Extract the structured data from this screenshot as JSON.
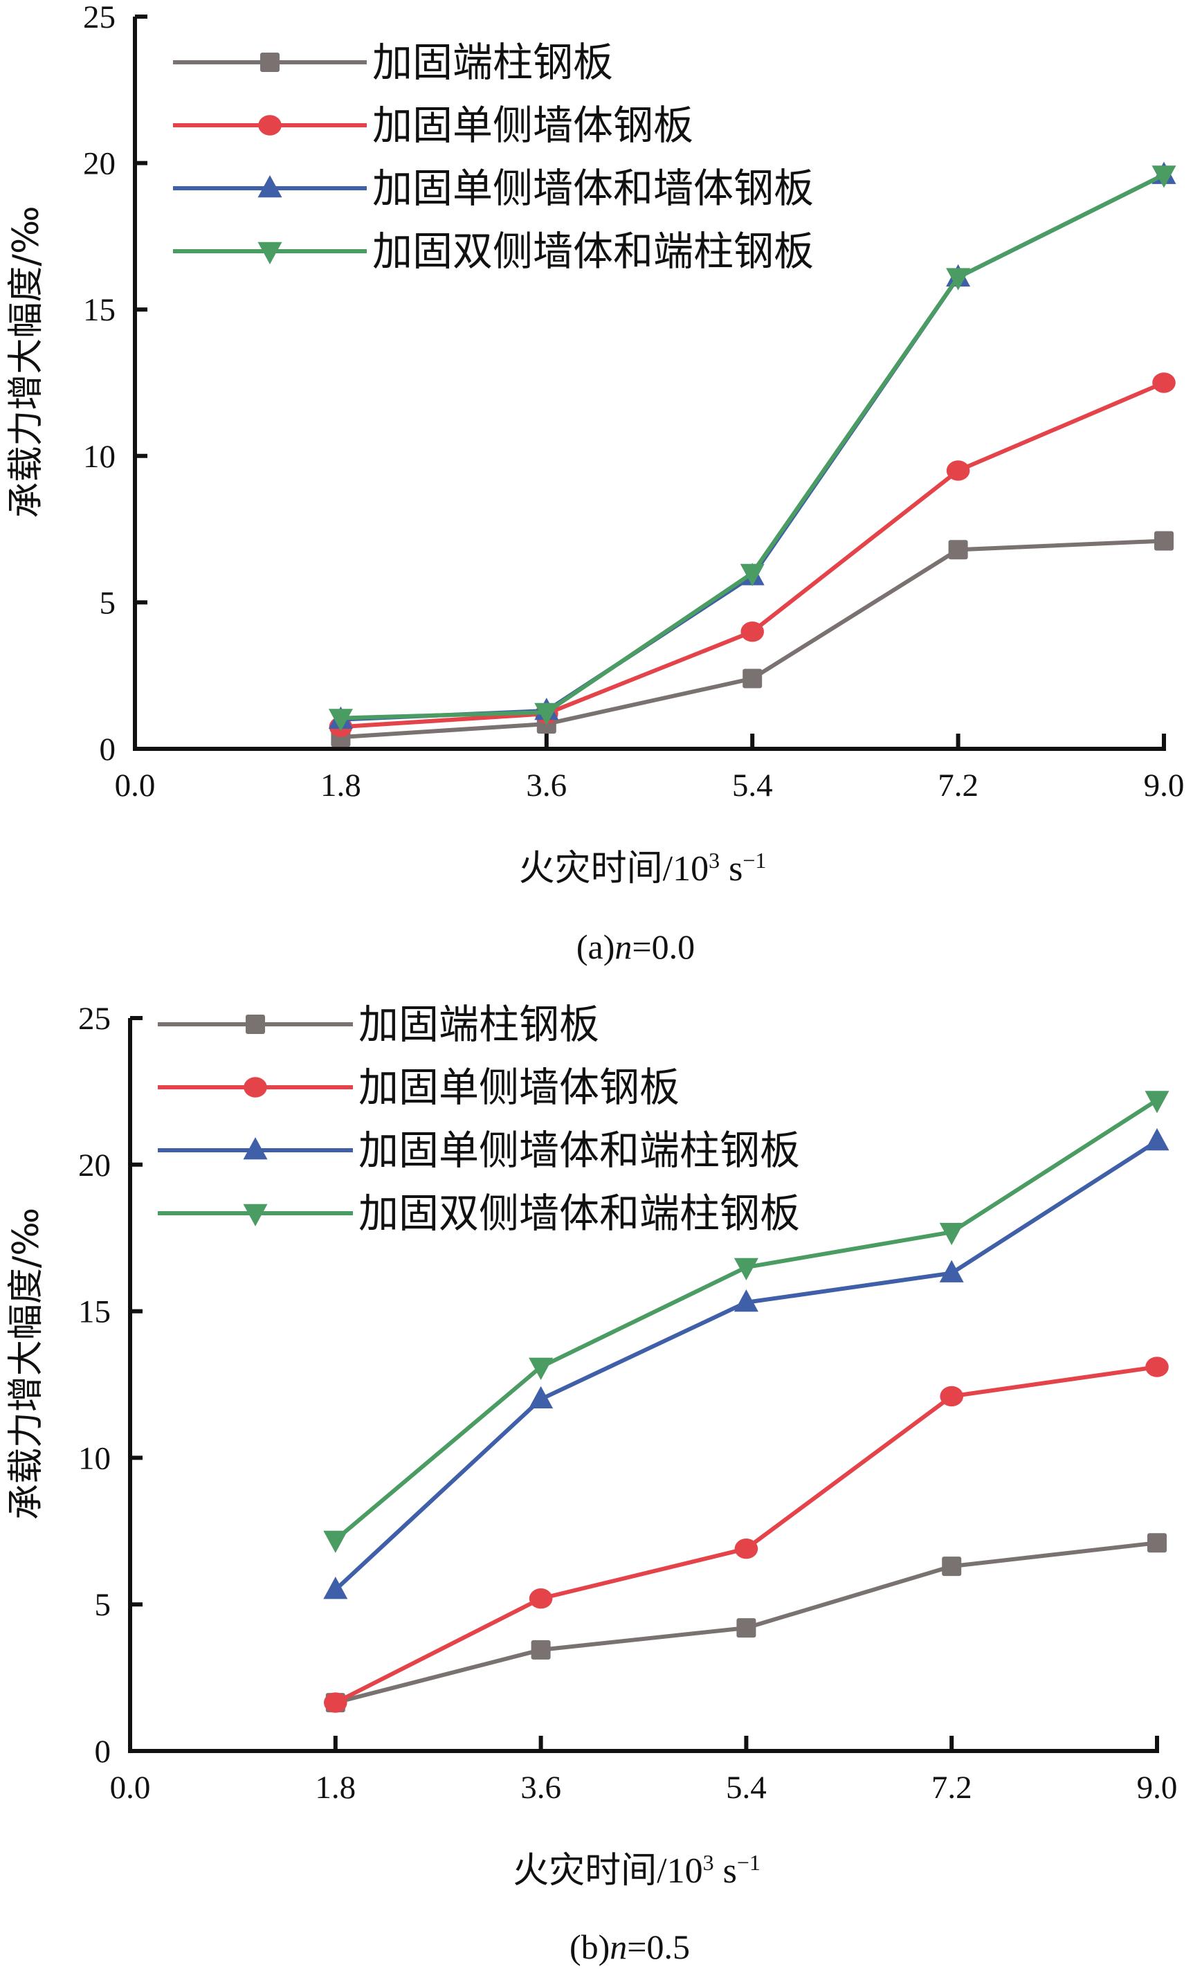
{
  "chart_data": [
    {
      "type": "line",
      "caption": "(a)n=0.0",
      "caption_prefix": "(a)",
      "caption_var": "n",
      "caption_value": "=0.0",
      "xlabel_cn": "火灾时间",
      "xlabel_unit": "/10",
      "xlabel_sup1": "3",
      "xlabel_s": " s",
      "xlabel_sup2": "−1",
      "ylabel": "承载力增大幅度/‰",
      "xlim": [
        0,
        9.0
      ],
      "ylim": [
        0,
        25
      ],
      "x_ticks": [
        "0.0",
        "1.8",
        "3.6",
        "5.4",
        "7.2",
        "9.0"
      ],
      "y_ticks": [
        "0",
        "5",
        "10",
        "15",
        "20",
        "25"
      ],
      "legend_position": "top-left",
      "x": [
        1.8,
        3.6,
        5.4,
        7.2,
        9.0
      ],
      "series": [
        {
          "name": "加固端柱钢板",
          "marker": "square",
          "color": "#7a7270",
          "values": [
            0.4,
            0.85,
            2.4,
            6.8,
            7.1
          ]
        },
        {
          "name": "加固单侧墙体钢板",
          "marker": "circle",
          "color": "#e5434a",
          "values": [
            0.75,
            1.2,
            4.0,
            9.5,
            12.5
          ]
        },
        {
          "name": "加固单侧墙体和墙体钢板",
          "marker": "triangle-up",
          "color": "#3f5fa8",
          "values": [
            1.0,
            1.3,
            5.9,
            16.1,
            19.6
          ]
        },
        {
          "name": "加固双侧墙体和端柱钢板",
          "marker": "triangle-down",
          "color": "#4a9c62",
          "values": [
            1.05,
            1.25,
            6.0,
            16.1,
            19.6
          ]
        }
      ]
    },
    {
      "type": "line",
      "caption": "(b)n=0.5",
      "caption_prefix": "(b)",
      "caption_var": "n",
      "caption_value": "=0.5",
      "xlabel_cn": "火灾时间",
      "xlabel_unit": "/10",
      "xlabel_sup1": "3",
      "xlabel_s": " s",
      "xlabel_sup2": "−1",
      "ylabel": "承载力增大幅度/‰",
      "xlim": [
        0,
        9.0
      ],
      "ylim": [
        0,
        25
      ],
      "x_ticks": [
        "0.0",
        "1.8",
        "3.6",
        "5.4",
        "7.2",
        "9.0"
      ],
      "y_ticks": [
        "0",
        "5",
        "10",
        "15",
        "20",
        "25"
      ],
      "legend_position": "top-left",
      "x": [
        1.8,
        3.6,
        5.4,
        7.2,
        9.0
      ],
      "series": [
        {
          "name": "加固端柱钢板",
          "marker": "square",
          "color": "#7a7270",
          "values": [
            1.65,
            3.45,
            4.2,
            6.3,
            7.1
          ]
        },
        {
          "name": "加固单侧墙体钢板",
          "marker": "circle",
          "color": "#e5434a",
          "values": [
            1.65,
            5.2,
            6.9,
            12.1,
            13.1
          ]
        },
        {
          "name": "加固单侧墙体和端柱钢板",
          "marker": "triangle-up",
          "color": "#3f5fa8",
          "values": [
            5.5,
            12.0,
            15.3,
            16.3,
            20.8
          ]
        },
        {
          "name": "加固双侧墙体和端柱钢板",
          "marker": "triangle-down",
          "color": "#4a9c62",
          "values": [
            7.2,
            13.1,
            16.5,
            17.7,
            22.2
          ]
        }
      ]
    }
  ]
}
